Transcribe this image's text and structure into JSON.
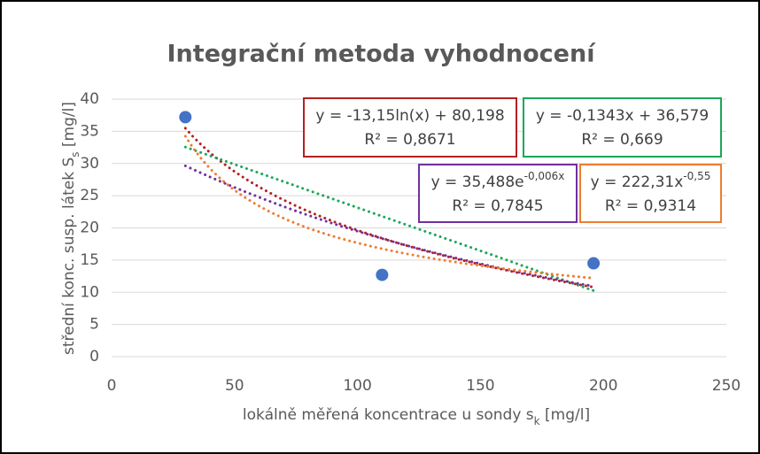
{
  "chart_data": {
    "type": "scatter",
    "title": "Integrační metoda vyhodnocení",
    "xlabel": [
      "lokálně měřená koncentrace u sondy s",
      "k",
      " [mg/l]"
    ],
    "ylabel": [
      "střední konc. susp. látek S",
      "s",
      "  [mg/l]"
    ],
    "x": [
      30,
      110,
      196
    ],
    "values": [
      37.2,
      12.7,
      14.5
    ],
    "color": "#4472c4",
    "xlim": [
      0,
      250
    ],
    "xticks": [
      0,
      50,
      100,
      150,
      200,
      250
    ],
    "ylim": [
      0,
      40
    ],
    "yticks": [
      0,
      5,
      10,
      15,
      20,
      25,
      30,
      35,
      40
    ],
    "grid": true,
    "trendlines": [
      {
        "model": "log",
        "coef": [
          -13.15,
          80.198
        ],
        "color": "#b22222",
        "equation": [
          "y = -13,15ln(x) + 80,198"
        ],
        "r2": "R² = 0,8671"
      },
      {
        "model": "linear",
        "coef": [
          -0.1343,
          36.579
        ],
        "color": "#1aa85a",
        "equation": [
          "y = -0,1343x + 36,579"
        ],
        "r2": "R² = 0,669"
      },
      {
        "model": "exp",
        "coef": [
          35.488,
          -0.006
        ],
        "color": "#7030a0",
        "equation": [
          "y = 35,488e",
          "-0,006x"
        ],
        "r2": "R² = 0,7845"
      },
      {
        "model": "power",
        "coef": [
          222.31,
          -0.55
        ],
        "color": "#ed7d31",
        "equation": [
          "y = 222,31x",
          "-0,55"
        ],
        "r2": "R² = 0,9314"
      }
    ]
  }
}
